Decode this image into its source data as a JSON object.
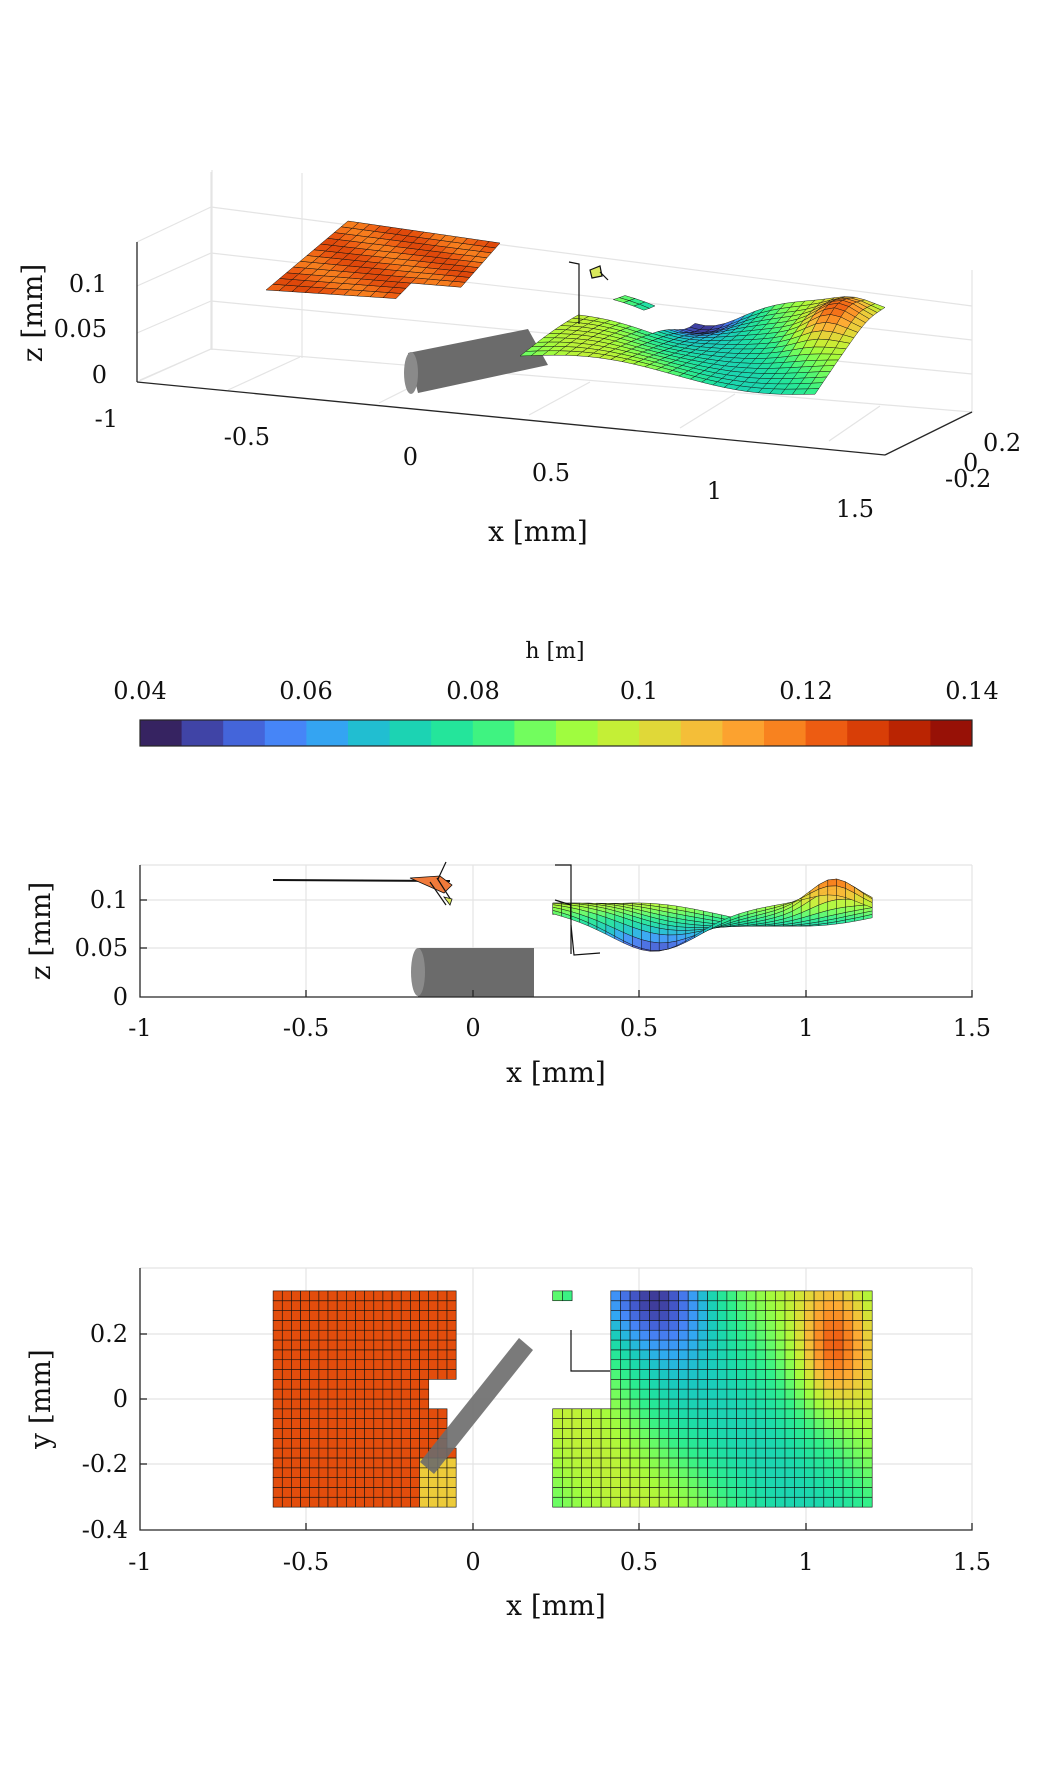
{
  "colormap": [
    "#30123b",
    "#3e3994",
    "#4460d6",
    "#4686f8",
    "#30aaf1",
    "#1ac7c2",
    "#1ddea5",
    "#31f08a",
    "#6efd61",
    "#a4fc3c",
    "#cdeb34",
    "#eccd3a",
    "#fdae35",
    "#fa8a22",
    "#ee5d12",
    "#d53a05",
    "#b01c01",
    "#85090a"
  ],
  "chart_data": [
    {
      "id": "panel-3d",
      "type": "surface",
      "view": "3d-oblique",
      "xlabel": "x [mm]",
      "ylabel": "",
      "zlabel": "z [mm]",
      "xticks": [
        "-1",
        "-0.5",
        "0",
        "0.5",
        "1",
        "1.5"
      ],
      "yticks": [
        "-0.2",
        "0",
        "0.2"
      ],
      "zticks": [
        "0",
        "0.05",
        "0.1"
      ],
      "xlim": [
        -1,
        1.5
      ],
      "ylim": [
        -0.4,
        0.4
      ],
      "zlim": [
        0,
        0.14
      ],
      "grid": true
    },
    {
      "id": "colorbar",
      "type": "colorbar",
      "title": "h [m]",
      "ticks": [
        "0.04",
        "0.06",
        "0.08",
        "0.1",
        "0.12",
        "0.14"
      ],
      "range": [
        0.04,
        0.14
      ],
      "levels": 20
    },
    {
      "id": "panel-xz",
      "type": "surface",
      "view": "side (x-z)",
      "xlabel": "x [mm]",
      "ylabel": "z [mm]",
      "xticks": [
        "-1",
        "-0.5",
        "0",
        "0.5",
        "1",
        "1.5"
      ],
      "yticks": [
        "0",
        "0.05",
        "0.1"
      ],
      "xlim": [
        -1,
        1.5
      ],
      "ylim": [
        0,
        0.13
      ],
      "grid": true
    },
    {
      "id": "panel-xy",
      "type": "heatmap",
      "view": "top (x-y)",
      "xlabel": "x [mm]",
      "ylabel": "y [mm]",
      "xticks": [
        "-1",
        "-0.5",
        "0",
        "0.5",
        "1",
        "1.5"
      ],
      "yticks": [
        "-0.4",
        "-0.2",
        "0",
        "0.2"
      ],
      "xlim": [
        -1,
        1.5
      ],
      "ylim": [
        -0.4,
        0.4
      ],
      "grid": true,
      "left_patch": {
        "x": [
          -0.6,
          -0.05
        ],
        "y": [
          -0.33,
          0.33
        ],
        "h": 0.125
      },
      "right_patch": {
        "x": [
          0.24,
          1.2
        ],
        "y": [
          -0.33,
          0.33
        ],
        "h_range": [
          0.07,
          0.11
        ]
      },
      "cylinder": {
        "x": [
          -0.17,
          0.17
        ],
        "y": [
          -0.17,
          0.17
        ]
      }
    }
  ]
}
